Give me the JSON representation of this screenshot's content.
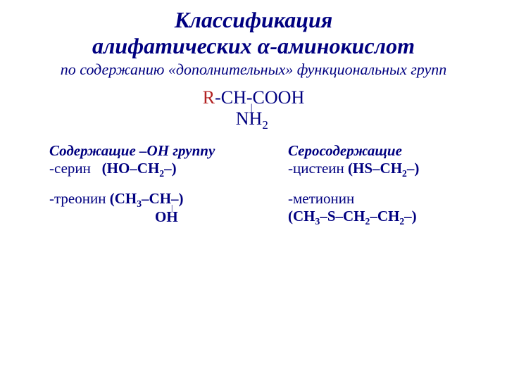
{
  "colors": {
    "text": "#000080",
    "accent_r": "#b22222",
    "background": "#ffffff"
  },
  "title": {
    "line1": "Классификация",
    "line2": "алифатических α-аминокислот",
    "title_fontsize_pt": 24
  },
  "subtitle": {
    "text": "по содержанию «дополнительных» функциональных групп",
    "fontsize_pt": 17
  },
  "formula": {
    "r": "R",
    "main": "-CH-COOH",
    "nh2_prefix": "NH",
    "nh2_sub": "2",
    "fontsize_pt": 20
  },
  "left": {
    "heading": "Содержащие –ОН группу",
    "serine_name": "-серин   ",
    "serine_open": "(",
    "serine_chem": "НО",
    "serine_mid": "–СН",
    "serine_sub": "2",
    "serine_tail": "–)",
    "threonine_name": "-треонин ",
    "threonine_open": "(СН",
    "threonine_sub": "3",
    "threonine_mid": "–СН–)",
    "threonine_oh": "ОН"
  },
  "right": {
    "heading": "Серосодержащие",
    "cysteine_name": "-цистеин ",
    "cysteine_open": "(",
    "cysteine_chem": "HS",
    "cysteine_mid": "–СН",
    "cysteine_sub": "2",
    "cysteine_tail": "–)",
    "methionine_name": "-метионин",
    "methionine_open": "(СН",
    "methionine_sub1": "3",
    "methionine_mid1": "–",
    "methionine_s": "S",
    "methionine_mid2": "–СН",
    "methionine_sub2": "2",
    "methionine_mid3": "–СН",
    "methionine_sub3": "2",
    "methionine_tail": "–)"
  }
}
